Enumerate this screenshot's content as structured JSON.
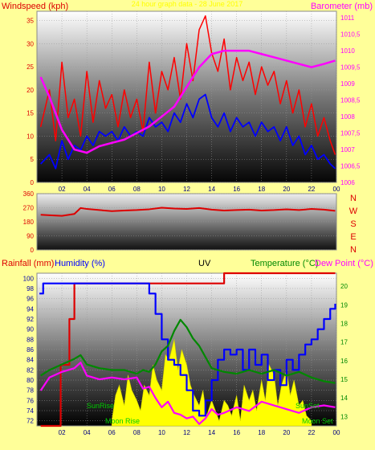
{
  "header": {
    "windspeed_label": "Windspeed (kph)",
    "title": "24 hour graph data - 28 June 2017",
    "barometer_label": "Barometer (mb)"
  },
  "legend": {
    "rainfall_label": "Rainfall (mm)",
    "humidity_label": "Humidity (%)",
    "uv_label": "UV",
    "temperature_label": "Temperature (°C)",
    "dewpoint_label": "Dew Point (°C)"
  },
  "compass": {
    "n": "N",
    "w": "W",
    "s": "S",
    "e": "E",
    "n2": "N"
  },
  "annotations": {
    "sunrise": "SunRise",
    "sunset": "SunSet",
    "moonrise": "Moon Rise",
    "moonset": "Moon Set"
  },
  "colors": {
    "background": "#ffff99",
    "wind_gust": "#ff0000",
    "wind_avg": "#0000ff",
    "barometer": "#ff00ff",
    "direction": "#dd0000",
    "rainfall": "#dd0000",
    "humidity": "#0000ff",
    "uv": "#ffff00",
    "temperature": "#008800",
    "dewpoint": "#ff00ff",
    "annotation": "#00cc00"
  },
  "chart_data": [
    {
      "type": "line",
      "name": "wind_barometer",
      "x_ticks": [
        "02",
        "04",
        "06",
        "08",
        "10",
        "12",
        "14",
        "16",
        "18",
        "20",
        "22",
        "00"
      ],
      "x_range": [
        0,
        24
      ],
      "ylim_left": [
        0,
        37
      ],
      "yticks_left": [
        0,
        5,
        10,
        15,
        20,
        25,
        30,
        35
      ],
      "ylim_right": [
        1006,
        1011.2
      ],
      "yticks_right": [
        "1006",
        "1006,5",
        "1007",
        "1007,5",
        "1008",
        "1008,5",
        "1009",
        "1009,5",
        "1010",
        "1010,5",
        "1011"
      ],
      "series": [
        {
          "role": "wind_gust",
          "axis": "left",
          "x": [
            0.3,
            1,
            1.5,
            2,
            2.5,
            3,
            3.5,
            4,
            4.5,
            5,
            5.5,
            6,
            6.5,
            7,
            7.5,
            8,
            8.5,
            9,
            9.5,
            10,
            10.5,
            11,
            11.5,
            12,
            12.5,
            13,
            13.5,
            14,
            14.5,
            15,
            15.5,
            16,
            16.5,
            17,
            17.5,
            18,
            18.5,
            19,
            19.5,
            20,
            20.5,
            21,
            21.5,
            22,
            22.5,
            23,
            23.5,
            23.9
          ],
          "y": [
            12,
            20,
            9,
            26,
            14,
            18,
            10,
            24,
            13,
            22,
            16,
            19,
            12,
            20,
            14,
            18,
            11,
            26,
            15,
            24,
            20,
            27,
            18,
            30,
            22,
            33,
            36,
            28,
            24,
            31,
            20,
            27,
            22,
            26,
            19,
            25,
            21,
            24,
            17,
            22,
            15,
            20,
            12,
            17,
            10,
            14,
            9,
            6
          ]
        },
        {
          "role": "wind_avg",
          "axis": "left",
          "x": [
            0.3,
            1,
            1.5,
            2,
            2.5,
            3,
            3.5,
            4,
            4.5,
            5,
            5.5,
            6,
            6.5,
            7,
            7.5,
            8,
            8.5,
            9,
            9.5,
            10,
            10.5,
            11,
            11.5,
            12,
            12.5,
            13,
            13.5,
            14,
            14.5,
            15,
            15.5,
            16,
            16.5,
            17,
            17.5,
            18,
            18.5,
            19,
            19.5,
            20,
            20.5,
            21,
            21.5,
            22,
            22.5,
            23,
            23.5,
            23.9
          ],
          "y": [
            4,
            6,
            3,
            9,
            5,
            8,
            7,
            10,
            8,
            11,
            10,
            11,
            9,
            12,
            10,
            11,
            10,
            14,
            12,
            13,
            11,
            15,
            13,
            17,
            14,
            18,
            19,
            14,
            12,
            15,
            11,
            14,
            12,
            13,
            10,
            13,
            11,
            12,
            9,
            12,
            8,
            10,
            6,
            8,
            5,
            6,
            4,
            3
          ]
        },
        {
          "role": "barometer",
          "axis": "right",
          "x": [
            0.3,
            1,
            2,
            3,
            4,
            5,
            6,
            7,
            8,
            9,
            10,
            11,
            12,
            13,
            14,
            15,
            16,
            17,
            18,
            19,
            20,
            21,
            22,
            23,
            23.9
          ],
          "y": [
            1009.2,
            1008.6,
            1007.6,
            1007.0,
            1006.9,
            1007.1,
            1007.2,
            1007.3,
            1007.5,
            1007.7,
            1008.0,
            1008.3,
            1008.9,
            1009.5,
            1009.9,
            1010.0,
            1010.0,
            1010.0,
            1009.9,
            1009.8,
            1009.7,
            1009.6,
            1009.5,
            1009.6,
            1009.7
          ]
        }
      ]
    },
    {
      "type": "line",
      "name": "wind_direction",
      "ylim": [
        0,
        360
      ],
      "yticks": [
        0,
        90,
        180,
        270,
        360
      ],
      "ytick_labels": [
        "0",
        "90",
        "180",
        "270",
        "360"
      ],
      "series": [
        {
          "role": "direction",
          "x": [
            0.3,
            1,
            2,
            3,
            3.5,
            4,
            5,
            6,
            7,
            8,
            9,
            10,
            11,
            12,
            13,
            14,
            15,
            16,
            17,
            18,
            19,
            20,
            21,
            22,
            23,
            23.9
          ],
          "y": [
            225,
            222,
            218,
            230,
            268,
            262,
            255,
            248,
            252,
            255,
            260,
            270,
            265,
            262,
            268,
            258,
            252,
            255,
            258,
            252,
            255,
            260,
            255,
            262,
            258,
            250
          ]
        }
      ]
    },
    {
      "type": "line",
      "name": "rain_humidity_uv_temp",
      "x_ticks": [
        "02",
        "04",
        "06",
        "08",
        "10",
        "12",
        "14",
        "16",
        "18",
        "20",
        "22",
        "00"
      ],
      "yticks_left": [
        72,
        74,
        76,
        78,
        80,
        82,
        84,
        86,
        88,
        90,
        92,
        94,
        96,
        98,
        100
      ],
      "ylim_left": [
        71,
        101
      ],
      "yticks_right": [
        13,
        14,
        15,
        16,
        17,
        18,
        19,
        20
      ],
      "ylim_right": [
        12.5,
        20.7
      ],
      "series": [
        {
          "role": "rainfall",
          "axis": "left",
          "x": [
            0.3,
            1.5,
            1.9,
            2.6,
            3.0,
            3.4,
            14.5,
            15.0,
            20.0,
            22.5,
            23.3,
            23.9
          ],
          "y": [
            71,
            71,
            83,
            92,
            99,
            99,
            99,
            101,
            101,
            101,
            101,
            101
          ]
        },
        {
          "role": "humidity",
          "axis": "left",
          "x": [
            0.2,
            0.5,
            1,
            2,
            3,
            4,
            5,
            6,
            7,
            8,
            8.5,
            9,
            9.5,
            10,
            10.5,
            11,
            11.5,
            12,
            12.5,
            13,
            13.5,
            14,
            14.5,
            15,
            15.5,
            16,
            16.5,
            17,
            17.5,
            18,
            18.5,
            19,
            19.5,
            20,
            20.5,
            21,
            21.5,
            22,
            22.5,
            23,
            23.5,
            23.9
          ],
          "y": [
            97,
            99,
            99,
            99,
            99,
            99,
            99,
            99,
            99,
            99,
            99,
            97,
            93,
            88,
            84,
            83,
            81,
            78,
            74,
            73,
            76,
            80,
            84,
            86,
            85,
            86,
            82,
            86,
            83,
            85,
            80,
            82,
            79,
            84,
            82,
            85,
            87,
            88,
            90,
            92,
            94,
            95
          ]
        },
        {
          "role": "dewpoint",
          "axis": "right",
          "x": [
            0.3,
            1,
            2,
            3,
            3.5,
            4,
            5,
            6,
            7,
            8,
            8.5,
            9,
            9.5,
            10,
            10.5,
            11,
            11.5,
            12,
            12.5,
            13,
            13.5,
            14,
            14.5,
            15,
            16,
            17,
            18,
            19,
            20,
            21,
            22,
            23,
            23.9
          ],
          "y": [
            14.4,
            15.1,
            15.4,
            15.6,
            15.9,
            15.2,
            15.0,
            15.1,
            15.0,
            15.1,
            14.5,
            14.6,
            14.0,
            13.5,
            13.8,
            13.2,
            13.1,
            12.9,
            13.0,
            12.6,
            12.9,
            13.4,
            13.1,
            13.2,
            13.5,
            13.3,
            13.8,
            13.6,
            13.4,
            13.2,
            13.5,
            13.6,
            13.5
          ]
        },
        {
          "role": "temperature",
          "axis": "right",
          "x": [
            0.3,
            1,
            2,
            3,
            3.5,
            4,
            5,
            6,
            7,
            8,
            8.5,
            9,
            9.5,
            10,
            10.5,
            11,
            11.5,
            12,
            12.5,
            13,
            13.5,
            14,
            15,
            16,
            17,
            18,
            19,
            20,
            21,
            22,
            23,
            23.9
          ],
          "y": [
            15.2,
            15.5,
            15.8,
            16.1,
            16.3,
            15.8,
            15.6,
            15.5,
            15.5,
            15.3,
            15.5,
            15.4,
            15.8,
            16.5,
            16.8,
            17.6,
            18.2,
            17.8,
            17.2,
            16.8,
            16.2,
            15.6,
            15.4,
            15.3,
            15.5,
            15.3,
            15.5,
            15.2,
            15.4,
            15.1,
            14.9,
            14.8
          ]
        },
        {
          "role": "uv",
          "axis": "left",
          "x": [
            6,
            6.3,
            6.6,
            7,
            7.3,
            7.6,
            8,
            8.3,
            8.6,
            9,
            9.3,
            9.6,
            10,
            10.3,
            10.6,
            11,
            11.3,
            11.6,
            12,
            12.3,
            12.6,
            13,
            13.3,
            13.6,
            14,
            14.3,
            14.6,
            15,
            15.3,
            15.6,
            16,
            16.3,
            16.6,
            17,
            17.3,
            17.6,
            18,
            18.3,
            18.6,
            19,
            19.3,
            19.6,
            20,
            20.3,
            20.6,
            21,
            21.3,
            21.6,
            22
          ],
          "y": [
            72,
            77,
            79,
            75,
            81,
            78,
            76,
            74,
            79,
            77,
            83,
            80,
            78,
            85,
            84,
            88,
            82,
            86,
            83,
            79,
            77,
            75,
            78,
            73,
            76,
            74,
            72,
            76,
            75,
            73,
            77,
            72,
            79,
            76,
            78,
            74,
            80,
            76,
            83,
            81,
            75,
            79,
            82,
            77,
            80,
            75,
            76,
            73,
            72
          ]
        }
      ]
    }
  ]
}
